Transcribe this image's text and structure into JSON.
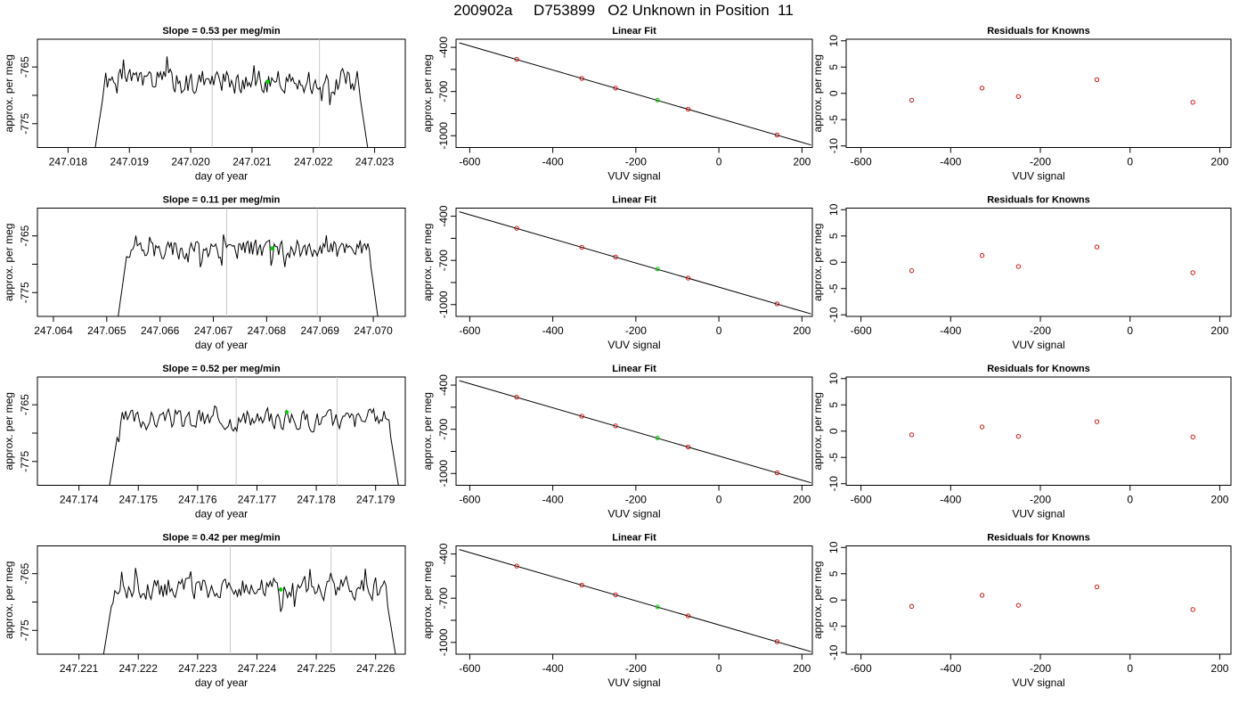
{
  "title": "200902a     D753899   O2 Unknown in Position  11",
  "colors": {
    "trace": "#000000",
    "guide": "#c8c8c8",
    "known": "#cc0000",
    "unknown": "#00cc00",
    "frame": "#000000"
  },
  "chart_data": [
    {
      "type": "line",
      "row": 1,
      "title": "Slope =  0.53  per meg/min",
      "xlabel": "day of year",
      "ylabel": "approx. per meg",
      "xticks": [
        "247.018",
        "247.019",
        "247.020",
        "247.021",
        "247.022",
        "247.023"
      ],
      "xlim": [
        247.0175,
        247.0235
      ],
      "yticks": [
        "-765",
        "-775"
      ],
      "ylim": [
        -779.2,
        -760.1
      ],
      "guides": [
        247.02035,
        247.0221
      ],
      "segment": [
        247.01843,
        247.0229
      ],
      "center": -767.6,
      "amp": 1.6,
      "seed": 1,
      "unknown_point": [
        247.02125,
        -767.6
      ]
    },
    {
      "type": "scatter",
      "row": 1,
      "title": "Linear Fit",
      "xlabel": "VUV signal",
      "ylabel": "approx. per meg",
      "xticks": [
        "-600",
        "-400",
        "-200",
        "0",
        "200"
      ],
      "xlim": [
        -633,
        225
      ],
      "yticks": [
        "-400",
        "-700",
        "-1000"
      ],
      "ylim": [
        -1080,
        -345
      ],
      "fit_line": {
        "x": [
          -625,
          222
        ],
        "y": [
          -370,
          -1063
        ]
      },
      "knowns": {
        "x": [
          -487,
          -330,
          -249,
          -74,
          140
        ],
        "y": [
          -482,
          -611,
          -677,
          -820,
          -995
        ]
      },
      "unknown": {
        "x": [
          -148
        ],
        "y": [
          -759
        ]
      }
    },
    {
      "type": "scatter",
      "row": 1,
      "title": "Residuals for Knowns",
      "xlabel": "VUV signal",
      "ylabel": "approx. per meg",
      "xticks": [
        "-600",
        "-400",
        "-200",
        "0",
        "200"
      ],
      "xlim": [
        -633,
        225
      ],
      "yticks": [
        "10",
        "5",
        "0",
        "-5",
        "-10"
      ],
      "ylim": [
        -10.3,
        10.3
      ],
      "knowns": {
        "x": [
          -487,
          -330,
          -249,
          -74,
          140
        ],
        "y": [
          -1.3,
          1.0,
          -0.6,
          2.6,
          -1.7
        ]
      }
    },
    {
      "type": "line",
      "row": 2,
      "title": "Slope =  0.11  per meg/min",
      "xlabel": "day of year",
      "ylabel": "approx. per meg",
      "xticks": [
        "247.064",
        "247.065",
        "247.066",
        "247.067",
        "247.068",
        "247.069",
        "247.070"
      ],
      "xlim": [
        247.0637,
        247.0706
      ],
      "yticks": [
        "-765",
        "-775"
      ],
      "ylim": [
        -779.2,
        -760.1
      ],
      "guides": [
        247.06725,
        247.06895
      ],
      "segment": [
        247.0652,
        247.0701
      ],
      "center": -767.3,
      "amp": 1.3,
      "seed": 2,
      "unknown_point": [
        247.0681,
        -767.2
      ]
    },
    {
      "type": "scatter",
      "row": 2,
      "title": "Linear Fit",
      "xlabel": "VUV signal",
      "ylabel": "approx. per meg",
      "xticks": [
        "-600",
        "-400",
        "-200",
        "0",
        "200"
      ],
      "xlim": [
        -633,
        225
      ],
      "yticks": [
        "-400",
        "-700",
        "-1000"
      ],
      "ylim": [
        -1080,
        -345
      ],
      "fit_line": {
        "x": [
          -625,
          222
        ],
        "y": [
          -370,
          -1063
        ]
      },
      "knowns": {
        "x": [
          -487,
          -330,
          -249,
          -74,
          140
        ],
        "y": [
          -482,
          -611,
          -677,
          -820,
          -995
        ]
      },
      "unknown": {
        "x": [
          -148
        ],
        "y": [
          -759
        ]
      }
    },
    {
      "type": "scatter",
      "row": 2,
      "title": "Residuals for Knowns",
      "xlabel": "VUV signal",
      "ylabel": "approx. per meg",
      "xticks": [
        "-600",
        "-400",
        "-200",
        "0",
        "200"
      ],
      "xlim": [
        -633,
        225
      ],
      "yticks": [
        "10",
        "5",
        "0",
        "-5",
        "-10"
      ],
      "ylim": [
        -10.3,
        10.3
      ],
      "knowns": {
        "x": [
          -487,
          -330,
          -249,
          -74,
          140
        ],
        "y": [
          -1.6,
          1.3,
          -0.8,
          2.9,
          -2.0
        ]
      }
    },
    {
      "type": "line",
      "row": 3,
      "title": "Slope =  0.52  per meg/min",
      "xlabel": "day of year",
      "ylabel": "approx. per meg",
      "xticks": [
        "247.174",
        "247.175",
        "247.176",
        "247.177",
        "247.178",
        "247.179"
      ],
      "xlim": [
        247.1733,
        247.1795
      ],
      "yticks": [
        "-765",
        "-775"
      ],
      "ylim": [
        -779.2,
        -760.1
      ],
      "guides": [
        247.17665,
        247.17835
      ],
      "segment": [
        247.1745,
        247.1794
      ],
      "center": -767.6,
      "amp": 1.3,
      "seed": 3,
      "unknown_point": [
        247.1775,
        -766.3
      ]
    },
    {
      "type": "scatter",
      "row": 3,
      "title": "Linear Fit",
      "xlabel": "VUV signal",
      "ylabel": "approx. per meg",
      "xticks": [
        "-600",
        "-400",
        "-200",
        "0",
        "200"
      ],
      "xlim": [
        -633,
        225
      ],
      "yticks": [
        "-400",
        "-700",
        "-1000"
      ],
      "ylim": [
        -1080,
        -345
      ],
      "fit_line": {
        "x": [
          -625,
          222
        ],
        "y": [
          -370,
          -1063
        ]
      },
      "knowns": {
        "x": [
          -487,
          -330,
          -249,
          -74,
          140
        ],
        "y": [
          -482,
          -611,
          -677,
          -820,
          -995
        ]
      },
      "unknown": {
        "x": [
          -148
        ],
        "y": [
          -759
        ]
      }
    },
    {
      "type": "scatter",
      "row": 3,
      "title": "Residuals for Knowns",
      "xlabel": "VUV signal",
      "ylabel": "approx. per meg",
      "xticks": [
        "-600",
        "-400",
        "-200",
        "0",
        "200"
      ],
      "xlim": [
        -633,
        225
      ],
      "yticks": [
        "10",
        "5",
        "0",
        "-5",
        "-10"
      ],
      "ylim": [
        -10.3,
        10.3
      ],
      "knowns": {
        "x": [
          -487,
          -330,
          -249,
          -74,
          140
        ],
        "y": [
          -0.7,
          0.8,
          -1.0,
          1.8,
          -1.1
        ]
      }
    },
    {
      "type": "line",
      "row": 4,
      "title": "Slope =  0.42  per meg/min",
      "xlabel": "day of year",
      "ylabel": "approx. per meg",
      "xticks": [
        "247.221",
        "247.222",
        "247.223",
        "247.224",
        "247.225",
        "247.226"
      ],
      "xlim": [
        247.2203,
        247.2265
      ],
      "yticks": [
        "-765",
        "-775"
      ],
      "ylim": [
        -779.2,
        -760.1
      ],
      "guides": [
        247.22355,
        247.22525
      ],
      "segment": [
        247.2214,
        247.22635
      ],
      "center": -767.6,
      "amp": 1.4,
      "seed": 4,
      "unknown_point": [
        247.2244,
        -767.8
      ]
    },
    {
      "type": "scatter",
      "row": 4,
      "title": "Linear Fit",
      "xlabel": "VUV signal",
      "ylabel": "approx. per meg",
      "xticks": [
        "-600",
        "-400",
        "-200",
        "0",
        "200"
      ],
      "xlim": [
        -633,
        225
      ],
      "yticks": [
        "-400",
        "-700",
        "-1000"
      ],
      "ylim": [
        -1080,
        -345
      ],
      "fit_line": {
        "x": [
          -625,
          222
        ],
        "y": [
          -370,
          -1063
        ]
      },
      "knowns": {
        "x": [
          -487,
          -330,
          -249,
          -74,
          140
        ],
        "y": [
          -482,
          -611,
          -677,
          -820,
          -995
        ]
      },
      "unknown": {
        "x": [
          -148
        ],
        "y": [
          -759
        ]
      }
    },
    {
      "type": "scatter",
      "row": 4,
      "title": "Residuals for Knowns",
      "xlabel": "VUV signal",
      "ylabel": "approx. per meg",
      "xticks": [
        "-600",
        "-400",
        "-200",
        "0",
        "200"
      ],
      "xlim": [
        -633,
        225
      ],
      "yticks": [
        "10",
        "5",
        "0",
        "-5",
        "-10"
      ],
      "ylim": [
        -10.3,
        10.3
      ],
      "knowns": {
        "x": [
          -487,
          -330,
          -249,
          -74,
          140
        ],
        "y": [
          -1.2,
          0.9,
          -1.0,
          2.5,
          -1.8
        ]
      }
    }
  ]
}
